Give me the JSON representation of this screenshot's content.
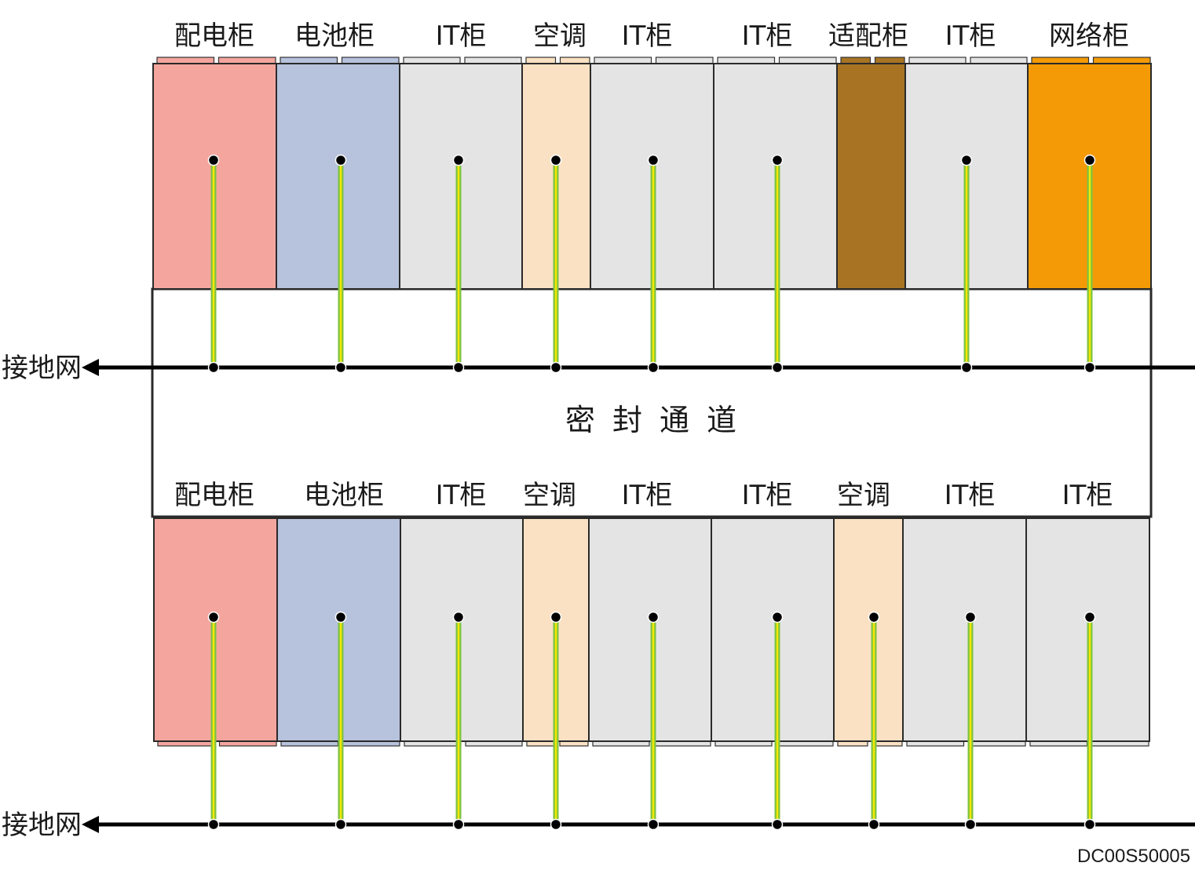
{
  "colors": {
    "power": "#f4a69e",
    "battery": "#b7c2dd",
    "it": "#e4e4e4",
    "ac": "#fbe1c3",
    "adapter": "#a87424",
    "network": "#f39a06",
    "cable_outer": "#7dc242",
    "cable_inner": "#f3e800",
    "line": "#1a1a1a"
  },
  "top_row": {
    "cabinets": [
      {
        "label": "配电柜",
        "type": "power"
      },
      {
        "label": "电池柜",
        "type": "battery"
      },
      {
        "label": "IT柜",
        "type": "it"
      },
      {
        "label": "空调",
        "type": "ac"
      },
      {
        "label": "IT柜",
        "type": "it"
      },
      {
        "label": "IT柜",
        "type": "it"
      },
      {
        "label": "适配柜",
        "type": "adapter"
      },
      {
        "label": "IT柜",
        "type": "it"
      },
      {
        "label": "网络柜",
        "type": "network"
      }
    ]
  },
  "bottom_row": {
    "cabinets": [
      {
        "label": "配电柜",
        "type": "power"
      },
      {
        "label": "电池柜",
        "type": "battery"
      },
      {
        "label": "IT柜",
        "type": "it"
      },
      {
        "label": "空调",
        "type": "ac"
      },
      {
        "label": "IT柜",
        "type": "it"
      },
      {
        "label": "IT柜",
        "type": "it"
      },
      {
        "label": "空调",
        "type": "ac"
      },
      {
        "label": "IT柜",
        "type": "it"
      },
      {
        "label": "IT柜",
        "type": "it"
      }
    ]
  },
  "channel_label": "密封通道",
  "ground_top_label": "接地网",
  "ground_bottom_label": "接地网",
  "diagram_code": "DC00S50005"
}
